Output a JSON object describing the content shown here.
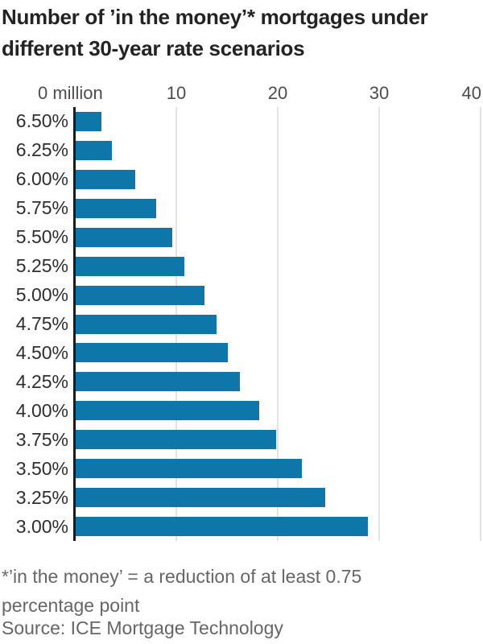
{
  "title": {
    "line1": "Number of ’in the money’* mortgages under",
    "line2": "different 30-year rate scenarios"
  },
  "chart_data": {
    "type": "bar",
    "orientation": "horizontal",
    "title": "Number of ’in the money’* mortgages under different 30-year rate scenarios",
    "categories": [
      "6.50%",
      "6.25%",
      "6.00%",
      "5.75%",
      "5.50%",
      "5.25%",
      "5.00%",
      "4.75%",
      "4.50%",
      "4.25%",
      "4.00%",
      "3.75%",
      "3.50%",
      "3.25%",
      "3.00%"
    ],
    "values": [
      2.5,
      3.6,
      5.9,
      7.9,
      9.5,
      10.7,
      12.7,
      13.9,
      15.0,
      16.2,
      18.1,
      19.8,
      22.3,
      24.6,
      28.8
    ],
    "values_unit": "million mortgages",
    "x_axis": {
      "ticks": [
        0,
        10,
        20,
        30,
        40
      ],
      "tick_labels": [
        "0 million",
        "10",
        "20",
        "30",
        "40"
      ],
      "min": 0,
      "max": 40
    },
    "grid": "vertical-light",
    "legend": "none",
    "bar_color": "#0E76A8"
  },
  "footnote": {
    "line1": "*’in the money’ = a reduction of at least 0.75",
    "line2": "percentage point"
  },
  "source": "Source: ICE Mortgage Technology",
  "colors": {
    "bar": "#0E76A8",
    "zero_axis_line": "#1b1b1b",
    "gridline": "#e2e2e2",
    "title_text": "#232323",
    "tick_label_text": "#4d4d4d",
    "rate_label_text": "#2e2e2e",
    "footnote_text": "#666666",
    "background": "#ffffff"
  }
}
